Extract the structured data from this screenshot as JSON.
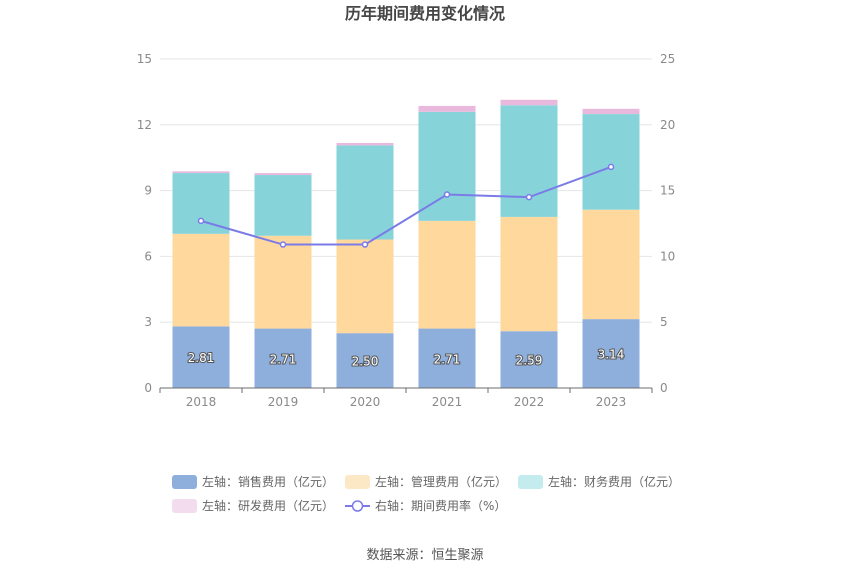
{
  "chart_data": {
    "type": "bar",
    "stacked": true,
    "title": "历年期间费用变化情况",
    "categories": [
      "2018",
      "2019",
      "2020",
      "2021",
      "2022",
      "2023"
    ],
    "series": [
      {
        "name": "左轴：销售费用（亿元）",
        "axis": "left",
        "color": "#8eaedc",
        "legend_color": "#8eaedc",
        "values": [
          2.81,
          2.71,
          2.5,
          2.71,
          2.59,
          3.14
        ],
        "labels": [
          "2.81",
          "2.71",
          "2.50",
          "2.71",
          "2.59",
          "3.14"
        ]
      },
      {
        "name": "左轴：管理费用（亿元）",
        "axis": "left",
        "color": "#fed89c",
        "legend_color": "#fde8c6",
        "values": [
          4.22,
          4.23,
          4.27,
          4.91,
          5.21,
          4.99
        ]
      },
      {
        "name": "左轴：财务费用（亿元）",
        "axis": "left",
        "color": "#86d4da",
        "legend_color": "#c4ecee",
        "values": [
          2.77,
          2.77,
          4.29,
          4.97,
          5.09,
          4.36
        ]
      },
      {
        "name": "左轴：研发费用（亿元）",
        "axis": "left",
        "color": "#e8b9dd",
        "legend_color": "#f3dcee",
        "values": [
          0.08,
          0.09,
          0.11,
          0.27,
          0.25,
          0.24
        ]
      }
    ],
    "line": {
      "name": "右轴：期间费用率（%）",
      "axis": "right",
      "color": "#7b7be8",
      "values": [
        12.7,
        10.9,
        10.9,
        14.7,
        14.5,
        16.8
      ]
    },
    "left_axis": {
      "min": 0,
      "max": 15,
      "ticks": [
        0,
        3,
        6,
        9,
        12,
        15
      ]
    },
    "right_axis": {
      "min": 0,
      "max": 25,
      "ticks": [
        0,
        5,
        10,
        15,
        20,
        25
      ]
    },
    "grid": true,
    "legend_position": "bottom"
  },
  "source_text": "数据来源：恒生聚源"
}
